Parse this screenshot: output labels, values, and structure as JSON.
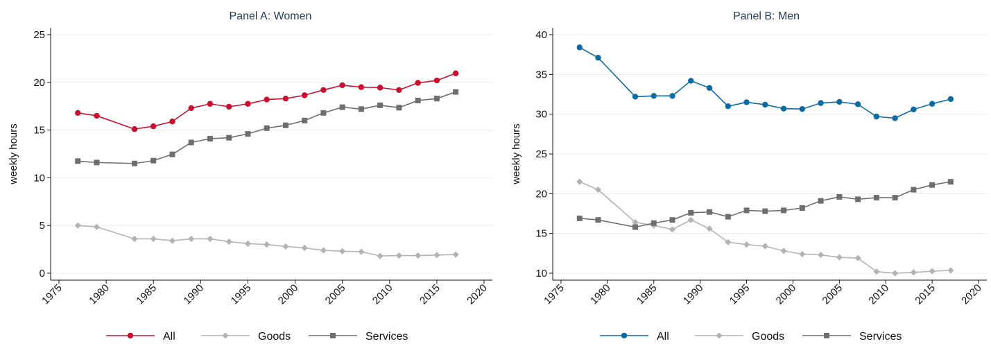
{
  "chart_data": [
    {
      "type": "line",
      "title": "Panel A: Women",
      "xlabel": "",
      "ylabel": "weekly hours",
      "xlim": [
        1975,
        2020
      ],
      "ylim": [
        0,
        25
      ],
      "xticks": [
        1975,
        1980,
        1985,
        1990,
        1995,
        2000,
        2005,
        2010,
        2015,
        2020
      ],
      "yticks": [
        0,
        5,
        10,
        15,
        20,
        25
      ],
      "grid": true,
      "legend": "bottom",
      "x": [
        1977,
        1979,
        1983,
        1985,
        1987,
        1989,
        1991,
        1993,
        1995,
        1997,
        1999,
        2001,
        2003,
        2005,
        2007,
        2009,
        2011,
        2013,
        2015,
        2017
      ],
      "series": [
        {
          "name": "All",
          "color": "#c8102e",
          "marker": "circle",
          "values": [
            16.8,
            16.5,
            15.1,
            15.4,
            15.9,
            17.3,
            17.75,
            17.45,
            17.75,
            18.2,
            18.3,
            18.65,
            19.2,
            19.7,
            19.5,
            19.45,
            19.2,
            19.95,
            20.2,
            20.95
          ]
        },
        {
          "name": "Goods",
          "color": "#b3b3b3",
          "marker": "diamond",
          "values": [
            5.0,
            4.85,
            3.6,
            3.6,
            3.4,
            3.6,
            3.6,
            3.3,
            3.1,
            3.0,
            2.8,
            2.65,
            2.4,
            2.3,
            2.25,
            1.8,
            1.85,
            1.85,
            1.9,
            1.95
          ]
        },
        {
          "name": "Services",
          "color": "#6e6e6e",
          "marker": "square",
          "values": [
            11.75,
            11.6,
            11.5,
            11.8,
            12.45,
            13.7,
            14.1,
            14.2,
            14.6,
            15.2,
            15.5,
            16.0,
            16.8,
            17.4,
            17.2,
            17.6,
            17.35,
            18.1,
            18.3,
            19.0
          ]
        }
      ]
    },
    {
      "type": "line",
      "title": "Panel B: Men",
      "xlabel": "",
      "ylabel": "weekly hours",
      "xlim": [
        1975,
        2020
      ],
      "ylim": [
        10,
        40
      ],
      "xticks": [
        1975,
        1980,
        1985,
        1990,
        1995,
        2000,
        2005,
        2010,
        2015,
        2020
      ],
      "yticks": [
        10,
        15,
        20,
        25,
        30,
        35,
        40
      ],
      "grid": true,
      "legend": "bottom",
      "x": [
        1977,
        1979,
        1983,
        1985,
        1987,
        1989,
        1991,
        1993,
        1995,
        1997,
        1999,
        2001,
        2003,
        2005,
        2007,
        2009,
        2011,
        2013,
        2015,
        2017
      ],
      "series": [
        {
          "name": "All",
          "color": "#0b6aa2",
          "marker": "circle",
          "values": [
            38.4,
            37.1,
            32.2,
            32.3,
            32.3,
            34.2,
            33.3,
            31.0,
            31.5,
            31.2,
            30.7,
            30.65,
            31.4,
            31.55,
            31.25,
            29.7,
            29.5,
            30.6,
            31.3,
            31.9
          ]
        },
        {
          "name": "Goods",
          "color": "#b3b3b3",
          "marker": "diamond",
          "values": [
            21.5,
            20.5,
            16.4,
            16.0,
            15.5,
            16.7,
            15.6,
            13.9,
            13.6,
            13.4,
            12.8,
            12.4,
            12.3,
            12.0,
            11.9,
            10.2,
            10.0,
            10.1,
            10.25,
            10.35
          ]
        },
        {
          "name": "Services",
          "color": "#6e6e6e",
          "marker": "square",
          "values": [
            16.9,
            16.7,
            15.8,
            16.3,
            16.7,
            17.6,
            17.7,
            17.1,
            17.9,
            17.8,
            17.9,
            18.2,
            19.1,
            19.6,
            19.3,
            19.5,
            19.5,
            20.5,
            21.1,
            21.5
          ]
        }
      ]
    }
  ]
}
